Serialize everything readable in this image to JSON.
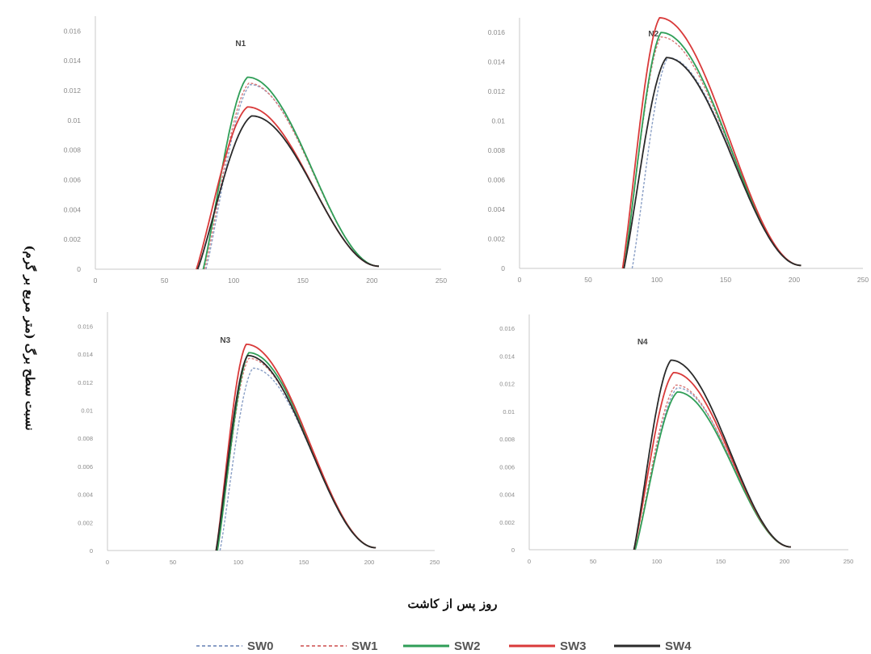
{
  "labels": {
    "shared_x": "روز پس از کاشت",
    "shared_y": "نسبت سطح برگ (متر مربع بر گرم)"
  },
  "colors": {
    "SW0": "#8a9fc6",
    "SW1": "#d97878",
    "SW2": "#2f9e57",
    "SW3": "#d93a3a",
    "SW4": "#2a2a2a"
  },
  "legend": [
    {
      "name": "SW0",
      "color": "#8a9fc6",
      "dashed": true
    },
    {
      "name": "SW1",
      "color": "#d97878",
      "dashed": true
    },
    {
      "name": "SW2",
      "color": "#2f9e57",
      "dashed": false
    },
    {
      "name": "SW3",
      "color": "#d93a3a",
      "dashed": false
    },
    {
      "name": "SW4",
      "color": "#2a2a2a",
      "dashed": false
    }
  ],
  "chart_data": [
    {
      "type": "line",
      "title": "N1",
      "xlabel": "روز پس از کاشت",
      "ylabel": "نسبت سطح برگ (متر مربع بر گرم)",
      "xlim": [
        0,
        250
      ],
      "ylim": [
        0,
        0.017
      ],
      "xticks": [
        0,
        50,
        100,
        150,
        200,
        250
      ],
      "xtick_labels": [
        "0",
        "50",
        "100",
        "150",
        "200",
        "250"
      ],
      "yticks": [
        0,
        0.002,
        0.004,
        0.006,
        0.008,
        0.01,
        0.012,
        0.014,
        0.016
      ],
      "ytick_labels": [
        "0",
        "0.002",
        "0.004",
        "0.006",
        "0.008",
        "0.01",
        "0.012",
        "0.014",
        "0.016"
      ],
      "grid": false,
      "series": [
        {
          "name": "SW0",
          "color": "#8a9fc6",
          "dashed": true,
          "start": 80,
          "peak_x": 112,
          "peak_y": 0.0124,
          "end": 205
        },
        {
          "name": "SW1",
          "color": "#d97878",
          "dashed": true,
          "start": 79,
          "peak_x": 111,
          "peak_y": 0.0125,
          "end": 205
        },
        {
          "name": "SW2",
          "color": "#2f9e57",
          "dashed": false,
          "start": 78,
          "peak_x": 110,
          "peak_y": 0.0129,
          "end": 205
        },
        {
          "name": "SW3",
          "color": "#d93a3a",
          "dashed": false,
          "start": 73,
          "peak_x": 110,
          "peak_y": 0.0109,
          "end": 205
        },
        {
          "name": "SW4",
          "color": "#2a2a2a",
          "dashed": false,
          "start": 74,
          "peak_x": 113,
          "peak_y": 0.0103,
          "end": 205
        }
      ]
    },
    {
      "type": "line",
      "title": "N2",
      "xlabel": "روز پس از کاشت",
      "ylabel": "نسبت سطح برگ (متر مربع بر گرم)",
      "xlim": [
        0,
        250
      ],
      "ylim": [
        0,
        0.017
      ],
      "xticks": [
        0,
        50,
        100,
        150,
        200,
        250
      ],
      "xtick_labels": [
        "0",
        "50",
        "100",
        "150",
        "200",
        "250"
      ],
      "yticks": [
        0,
        0.002,
        0.004,
        0.006,
        0.008,
        0.01,
        0.012,
        0.014,
        0.016
      ],
      "ytick_labels": [
        "0",
        "0.002",
        "0.004",
        "0.006",
        "0.008",
        "0.01",
        "0.012",
        "0.014",
        "0.016"
      ],
      "grid": false,
      "series": [
        {
          "name": "SW0",
          "color": "#8a9fc6",
          "dashed": true,
          "start": 82,
          "peak_x": 108,
          "peak_y": 0.0143,
          "end": 205
        },
        {
          "name": "SW1",
          "color": "#d97878",
          "dashed": true,
          "start": 76,
          "peak_x": 103,
          "peak_y": 0.0157,
          "end": 205
        },
        {
          "name": "SW2",
          "color": "#2f9e57",
          "dashed": false,
          "start": 76,
          "peak_x": 103,
          "peak_y": 0.016,
          "end": 205
        },
        {
          "name": "SW3",
          "color": "#d93a3a",
          "dashed": false,
          "start": 75,
          "peak_x": 102,
          "peak_y": 0.017,
          "end": 205
        },
        {
          "name": "SW4",
          "color": "#2a2a2a",
          "dashed": false,
          "start": 76,
          "peak_x": 107,
          "peak_y": 0.0143,
          "end": 205
        }
      ]
    },
    {
      "type": "line",
      "title": "N3",
      "xlabel": "روز پس از کاشت",
      "ylabel": "نسبت سطح برگ (متر مربع بر گرم)",
      "xlim": [
        0,
        250
      ],
      "ylim": [
        0,
        0.017
      ],
      "xticks": [
        0,
        50,
        100,
        150,
        200,
        250
      ],
      "xtick_labels": [
        "0",
        "50",
        "100",
        "150",
        "200",
        "250"
      ],
      "yticks": [
        0,
        0.002,
        0.004,
        0.006,
        0.008,
        0.01,
        0.012,
        0.014,
        0.016
      ],
      "ytick_labels": [
        "0",
        "0.002",
        "0.004",
        "0.006",
        "0.008",
        "0.01",
        "0.012",
        "0.014",
        "0.016"
      ],
      "grid": false,
      "series": [
        {
          "name": "SW0",
          "color": "#8a9fc6",
          "dashed": true,
          "start": 86,
          "peak_x": 111,
          "peak_y": 0.013,
          "end": 205
        },
        {
          "name": "SW1",
          "color": "#d97878",
          "dashed": true,
          "start": 84,
          "peak_x": 108,
          "peak_y": 0.0137,
          "end": 205
        },
        {
          "name": "SW2",
          "color": "#2f9e57",
          "dashed": false,
          "start": 84,
          "peak_x": 108,
          "peak_y": 0.0141,
          "end": 205
        },
        {
          "name": "SW3",
          "color": "#d93a3a",
          "dashed": false,
          "start": 83,
          "peak_x": 106,
          "peak_y": 0.0147,
          "end": 205
        },
        {
          "name": "SW4",
          "color": "#2a2a2a",
          "dashed": false,
          "start": 83,
          "peak_x": 107,
          "peak_y": 0.0139,
          "end": 205
        }
      ]
    },
    {
      "type": "line",
      "title": "N4",
      "xlabel": "روز پس از کاشت",
      "ylabel": "نسبت سطح برگ (متر مربع بر گرم)",
      "xlim": [
        0,
        250
      ],
      "ylim": [
        0,
        0.017
      ],
      "xticks": [
        0,
        50,
        100,
        150,
        200,
        250
      ],
      "xtick_labels": [
        "0",
        "50",
        "100",
        "150",
        "200",
        "250"
      ],
      "yticks": [
        0,
        0.002,
        0.004,
        0.006,
        0.008,
        0.01,
        0.012,
        0.014,
        0.016
      ],
      "ytick_labels": [
        "0",
        "0.002",
        "0.004",
        "0.006",
        "0.008",
        "0.01",
        "0.012",
        "0.014",
        "0.016"
      ],
      "grid": false,
      "series": [
        {
          "name": "SW0",
          "color": "#8a9fc6",
          "dashed": true,
          "start": 83,
          "peak_x": 116,
          "peak_y": 0.0117,
          "end": 205
        },
        {
          "name": "SW1",
          "color": "#d97878",
          "dashed": true,
          "start": 83,
          "peak_x": 115,
          "peak_y": 0.0119,
          "end": 205
        },
        {
          "name": "SW2",
          "color": "#2f9e57",
          "dashed": false,
          "start": 83,
          "peak_x": 116,
          "peak_y": 0.0114,
          "end": 205
        },
        {
          "name": "SW3",
          "color": "#d93a3a",
          "dashed": false,
          "start": 82,
          "peak_x": 113,
          "peak_y": 0.0128,
          "end": 205
        },
        {
          "name": "SW4",
          "color": "#2a2a2a",
          "dashed": false,
          "start": 82,
          "peak_x": 111,
          "peak_y": 0.0137,
          "end": 205
        }
      ]
    }
  ]
}
